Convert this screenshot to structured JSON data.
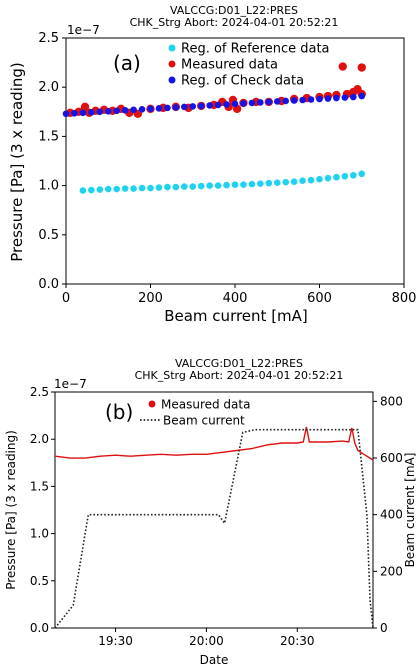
{
  "chart_data": [
    {
      "type": "scatter",
      "title": "VALCCG:D01_L22:PRES",
      "subtitle": "CHK_Strg Abort: 2024-04-01 20:52:21",
      "panel_label": "(a)",
      "xlabel": "Beam current [mA]",
      "ylabel": "Pressure [Pa] (3 x reading)",
      "y_multiplier": "1e−7",
      "xlim": [
        0,
        800
      ],
      "ylim": [
        0,
        2.5
      ],
      "xticks": [
        "0",
        "200",
        "400",
        "600",
        "800"
      ],
      "yticks": [
        "0.0",
        "0.5",
        "1.0",
        "1.5",
        "2.0",
        "2.5"
      ],
      "grid": false,
      "legend_position": "top-center",
      "series": [
        {
          "name": "Reg. of Reference data",
          "color": "#1fd3f0",
          "x": [
            40,
            60,
            80,
            100,
            120,
            140,
            160,
            180,
            200,
            220,
            240,
            260,
            280,
            300,
            320,
            340,
            360,
            380,
            400,
            420,
            440,
            460,
            480,
            500,
            520,
            540,
            560,
            580,
            600,
            620,
            640,
            660,
            680,
            700
          ],
          "y": [
            0.95,
            0.955,
            0.96,
            0.965,
            0.965,
            0.97,
            0.97,
            0.975,
            0.975,
            0.98,
            0.985,
            0.985,
            0.99,
            0.99,
            0.995,
            1.0,
            1.0,
            1.005,
            1.01,
            1.01,
            1.015,
            1.02,
            1.025,
            1.03,
            1.035,
            1.04,
            1.05,
            1.055,
            1.065,
            1.075,
            1.085,
            1.095,
            1.105,
            1.12
          ]
        },
        {
          "name": "Measured data",
          "color": "#e01010",
          "x": [
            10,
            30,
            45,
            55,
            70,
            90,
            110,
            130,
            150,
            170,
            200,
            230,
            260,
            290,
            320,
            350,
            370,
            385,
            395,
            405,
            420,
            450,
            480,
            510,
            540,
            570,
            600,
            620,
            640,
            655,
            665,
            680,
            690,
            700,
            700
          ],
          "y": [
            1.74,
            1.75,
            1.8,
            1.74,
            1.76,
            1.77,
            1.76,
            1.78,
            1.74,
            1.73,
            1.78,
            1.79,
            1.8,
            1.79,
            1.81,
            1.82,
            1.85,
            1.8,
            1.87,
            1.78,
            1.84,
            1.85,
            1.85,
            1.86,
            1.88,
            1.89,
            1.9,
            1.91,
            1.92,
            2.21,
            1.93,
            1.95,
            1.98,
            2.2,
            1.93
          ]
        },
        {
          "name": "Reg. of Check data",
          "color": "#1414e6",
          "x": [
            0,
            20,
            40,
            60,
            80,
            100,
            120,
            140,
            160,
            180,
            200,
            220,
            240,
            260,
            280,
            300,
            320,
            340,
            360,
            380,
            400,
            420,
            440,
            460,
            480,
            500,
            520,
            540,
            560,
            580,
            600,
            620,
            640,
            660,
            680,
            700
          ],
          "y": [
            1.73,
            1.735,
            1.74,
            1.745,
            1.75,
            1.755,
            1.76,
            1.765,
            1.77,
            1.775,
            1.78,
            1.785,
            1.79,
            1.795,
            1.8,
            1.805,
            1.81,
            1.815,
            1.82,
            1.825,
            1.83,
            1.835,
            1.84,
            1.845,
            1.85,
            1.855,
            1.86,
            1.865,
            1.87,
            1.875,
            1.88,
            1.885,
            1.89,
            1.895,
            1.9,
            1.91
          ]
        }
      ]
    },
    {
      "type": "line",
      "title": "VALCCG:D01_L22:PRES",
      "subtitle": "CHK_Strg Abort: 2024-04-01 20:52:21",
      "panel_label": "(b)",
      "xlabel": "Date",
      "ylabel": "Pressure [Pa] (3 x reading)",
      "y2label": "Beam current [mA]",
      "y_multiplier": "1e−7",
      "xlim": [
        "19:10",
        "20:55"
      ],
      "ylim": [
        0,
        2.5
      ],
      "y2lim": [
        0,
        833
      ],
      "xticks": [
        "19:30",
        "20:00",
        "20:30"
      ],
      "yticks": [
        "0.0",
        "0.5",
        "1.0",
        "1.5",
        "2.0",
        "2.5"
      ],
      "y2ticks": [
        "0",
        "200",
        "400",
        "600",
        "800"
      ],
      "grid": false,
      "legend_position": "top-left",
      "series": [
        {
          "name": "Measured data",
          "color": "#e01010",
          "axis": "left",
          "x": [
            "19:10",
            "19:15",
            "19:20",
            "19:25",
            "19:30",
            "19:35",
            "19:40",
            "19:45",
            "19:50",
            "19:55",
            "20:00",
            "20:05",
            "20:10",
            "20:15",
            "20:20",
            "20:25",
            "20:30",
            "20:32",
            "20:33",
            "20:34",
            "20:35",
            "20:40",
            "20:45",
            "20:47",
            "20:48",
            "20:49",
            "20:50",
            "20:52",
            "20:55"
          ],
          "y": [
            1.82,
            1.8,
            1.8,
            1.82,
            1.83,
            1.82,
            1.83,
            1.84,
            1.83,
            1.84,
            1.84,
            1.86,
            1.88,
            1.9,
            1.94,
            1.96,
            1.96,
            1.97,
            2.13,
            1.97,
            1.97,
            1.97,
            1.98,
            1.97,
            2.12,
            1.96,
            1.88,
            1.84,
            1.78
          ]
        },
        {
          "name": "Beam current",
          "color": "#222222",
          "axis": "right",
          "x": [
            "19:10",
            "19:16",
            "19:21",
            "19:24",
            "19:50",
            "20:04",
            "20:06",
            "20:12",
            "20:16",
            "20:50",
            "20:51",
            "20:53",
            "20:54",
            "20:55"
          ],
          "y": [
            0,
            80,
            400,
            400,
            400,
            400,
            370,
            690,
            700,
            700,
            600,
            400,
            100,
            0
          ]
        }
      ]
    }
  ]
}
